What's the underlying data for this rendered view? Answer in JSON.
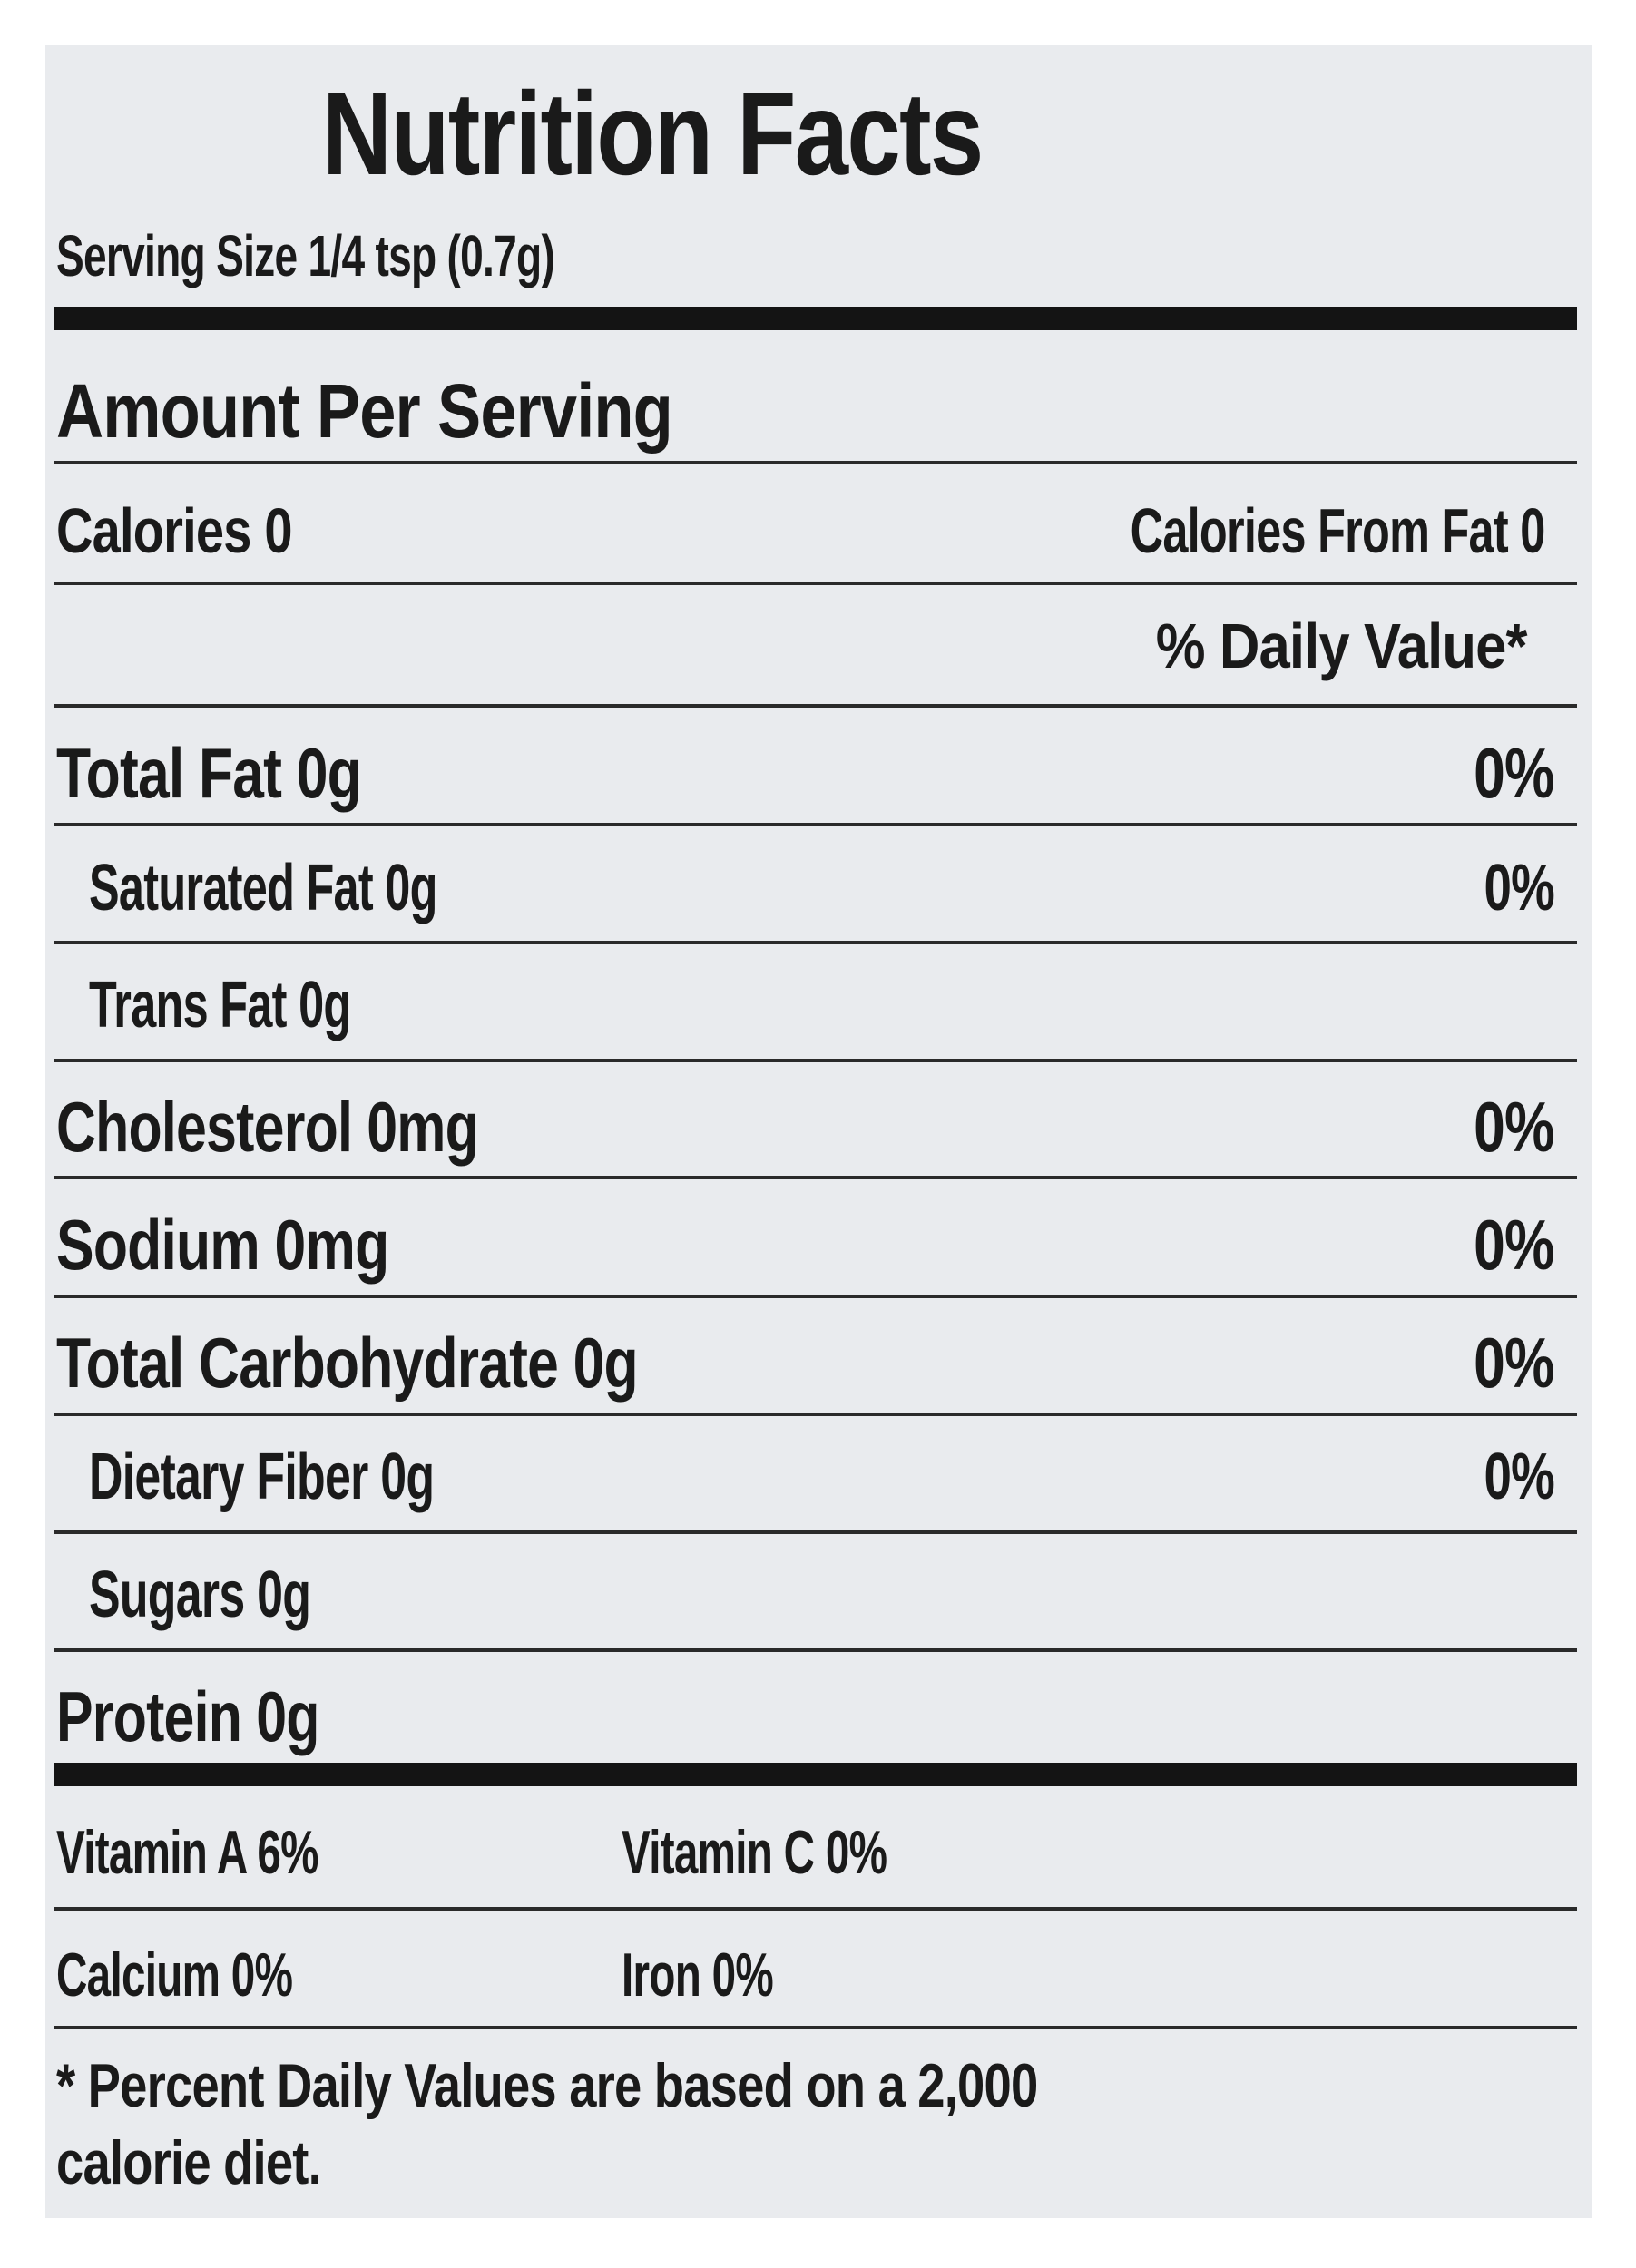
{
  "label": {
    "title": "Nutrition Facts",
    "serving_size": "Serving Size 1/4 tsp (0.7g)",
    "amount_per_serving": "Amount Per Serving",
    "calories": "Calories 0",
    "calories_from_fat": "Calories From Fat 0",
    "daily_value_header": "% Daily Value*",
    "rows": [
      {
        "label": "Total Fat  0g",
        "dv": "0%"
      },
      {
        "label": "Saturated Fat 0g",
        "dv": "0%"
      },
      {
        "label": "Trans Fat  0g",
        "dv": ""
      },
      {
        "label": "Cholesterol  0mg",
        "dv": "0%"
      },
      {
        "label": "Sodium  0mg",
        "dv": "0%"
      },
      {
        "label": "Total Carbohydrate  0g",
        "dv": "0%"
      },
      {
        "label": "Dietary Fiber 0g",
        "dv": "0%"
      },
      {
        "label": "Sugars  0g",
        "dv": ""
      },
      {
        "label": "Protein  0g",
        "dv": ""
      }
    ],
    "vitamin_a": "Vitamin A 6%",
    "vitamin_c": "Vitamin C 0%",
    "calcium": "Calcium 0%",
    "iron": "Iron 0%",
    "footnote_line1": "* Percent Daily Values are based on a 2,000",
    "footnote_line2": "calorie diet."
  }
}
